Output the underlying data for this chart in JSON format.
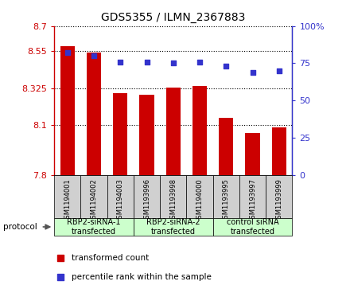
{
  "title": "GDS5355 / ILMN_2367883",
  "samples": [
    "GSM1194001",
    "GSM1194002",
    "GSM1194003",
    "GSM1193996",
    "GSM1193998",
    "GSM1194000",
    "GSM1193995",
    "GSM1193997",
    "GSM1193999"
  ],
  "bar_values": [
    8.58,
    8.54,
    8.295,
    8.285,
    8.33,
    8.335,
    8.145,
    8.055,
    8.085
  ],
  "dot_values": [
    82,
    80,
    76,
    76,
    75,
    76,
    73,
    69,
    70
  ],
  "ymin": 7.8,
  "ymax": 8.7,
  "y2min": 0,
  "y2max": 100,
  "yticks": [
    7.8,
    8.1,
    8.325,
    8.55,
    8.7
  ],
  "ytick_labels": [
    "7.8",
    "8.1",
    "8.325",
    "8.55",
    "8.7"
  ],
  "y2ticks": [
    0,
    25,
    50,
    75,
    100
  ],
  "y2tick_labels": [
    "0",
    "25",
    "50",
    "75",
    "100%"
  ],
  "bar_color": "#cc0000",
  "dot_color": "#3333cc",
  "group_labels": [
    "RBP2-siRNA-1\ntransfected",
    "RBP2-siRNA-2\ntransfected",
    "control siRNA\ntransfected"
  ],
  "group_sizes": [
    3,
    3,
    3
  ],
  "group_bg_light": "#ccffcc",
  "group_bg_dark": "#99ee99",
  "sample_bg_color": "#d0d0d0",
  "protocol_label": "protocol",
  "legend_bar_label": "transformed count",
  "legend_dot_label": "percentile rank within the sample"
}
